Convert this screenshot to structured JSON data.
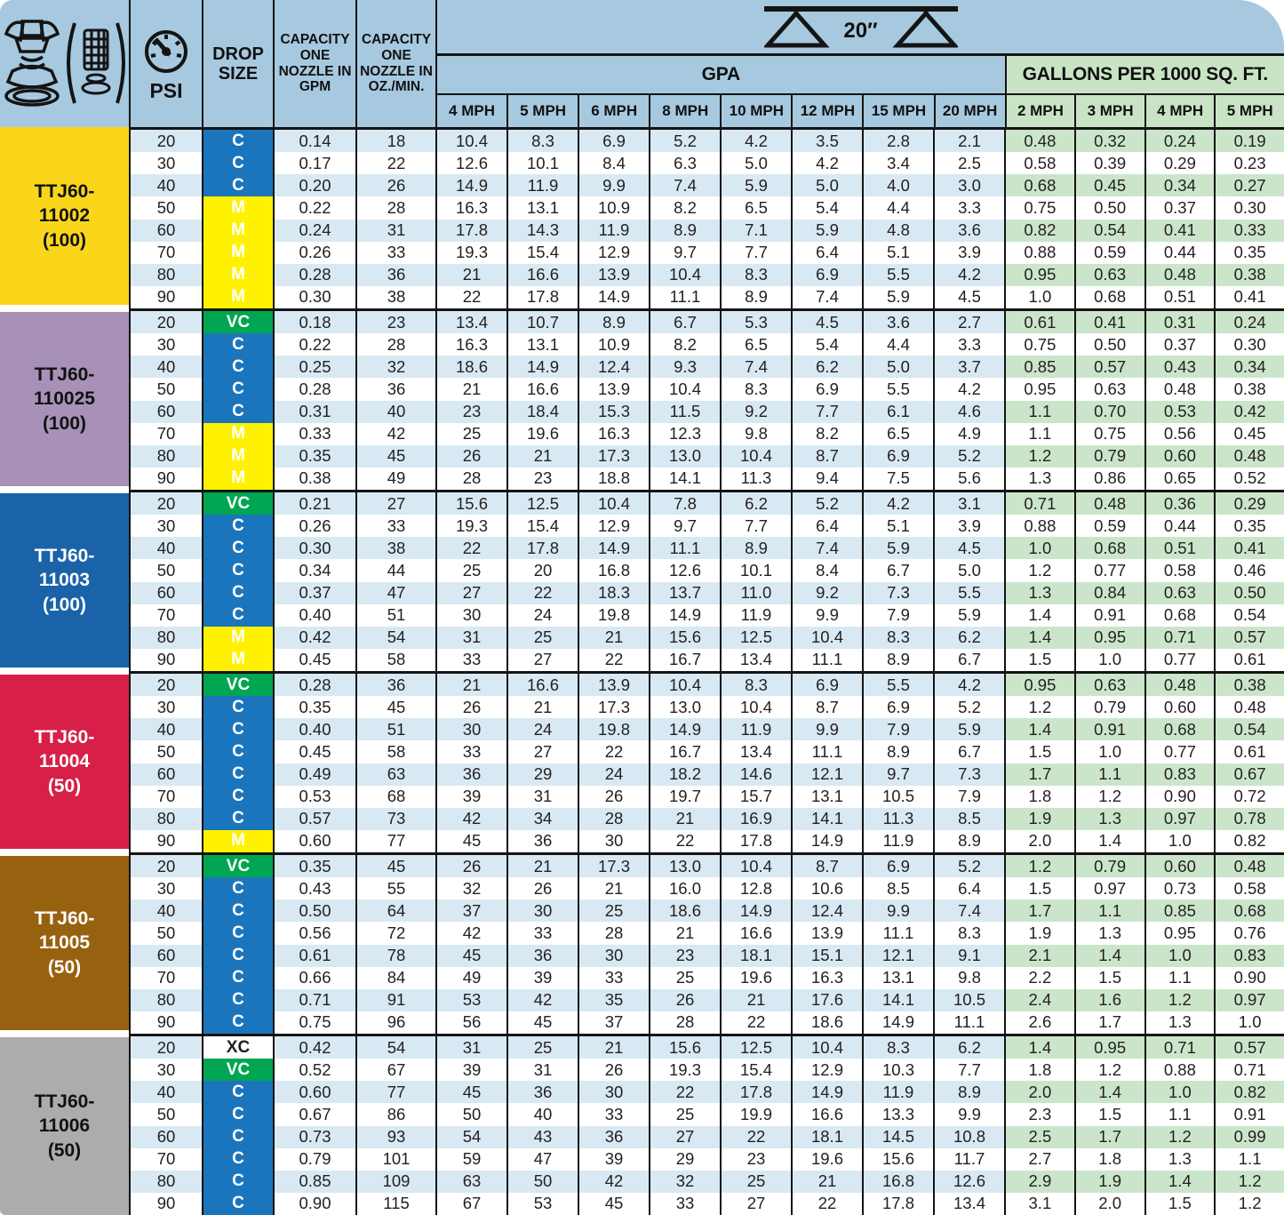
{
  "header": {
    "left_columns": {
      "psi": "PSI",
      "drop_size": "DROP SIZE",
      "capacity_gpm": "CAPACITY ONE NOZZLE IN GPM",
      "capacity_oz": "CAPACITY ONE NOZZLE IN OZ./MIN."
    },
    "spacing_label": "20″",
    "gpa": {
      "title": "GPA",
      "speeds": [
        "4 MPH",
        "5 MPH",
        "6 MPH",
        "8 MPH",
        "10 MPH",
        "12 MPH",
        "15 MPH",
        "20 MPH"
      ]
    },
    "gallons": {
      "title": "GALLONS PER 1000 SQ. FT.",
      "speeds": [
        "2 MPH",
        "3 MPH",
        "4 MPH",
        "5 MPH"
      ]
    }
  },
  "colors": {
    "header_blue": "#A6C9DF",
    "header_green": "#C9E4C5",
    "stripe_blue": "#D8E9F3",
    "stripe_green": "#CBE5CA",
    "border": "#141414",
    "text": "#231F20"
  },
  "drop_styles": {
    "C": {
      "bg": "#1B75BC",
      "fg": "#FFFFFF"
    },
    "M": {
      "bg": "#FFF200",
      "fg": "#FFFFFF"
    },
    "VC": {
      "bg": "#00A651",
      "fg": "#FFFFFF"
    },
    "XC": {
      "bg": "#FFFFFF",
      "fg": "#231F20"
    }
  },
  "chart_data": {
    "type": "table",
    "title": "Nozzle capacity and application rate chart, 20 in nozzle spacing",
    "column_structure": [
      "PSI",
      "DROP SIZE",
      "CAPACITY ONE NOZZLE IN GPM",
      "CAPACITY ONE NOZZLE IN OZ./MIN.",
      "GPA 4 MPH",
      "GPA 5 MPH",
      "GPA 6 MPH",
      "GPA 8 MPH",
      "GPA 10 MPH",
      "GPA 12 MPH",
      "GPA 15 MPH",
      "GPA 20 MPH",
      "GAL/1000SQFT 2 MPH",
      "GAL/1000SQFT 3 MPH",
      "GAL/1000SQFT 4 MPH",
      "GAL/1000SQFT 5 MPH"
    ],
    "blocks": [
      {
        "label": "TTJ60-\n11002\n(100)",
        "label_bg": "#F9D61A",
        "label_fg": "#111111",
        "rows": [
          [
            "20",
            "C",
            "0.14",
            "18",
            "10.4",
            "8.3",
            "6.9",
            "5.2",
            "4.2",
            "3.5",
            "2.8",
            "2.1",
            "0.48",
            "0.32",
            "0.24",
            "0.19"
          ],
          [
            "30",
            "C",
            "0.17",
            "22",
            "12.6",
            "10.1",
            "8.4",
            "6.3",
            "5.0",
            "4.2",
            "3.4",
            "2.5",
            "0.58",
            "0.39",
            "0.29",
            "0.23"
          ],
          [
            "40",
            "C",
            "0.20",
            "26",
            "14.9",
            "11.9",
            "9.9",
            "7.4",
            "5.9",
            "5.0",
            "4.0",
            "3.0",
            "0.68",
            "0.45",
            "0.34",
            "0.27"
          ],
          [
            "50",
            "M",
            "0.22",
            "28",
            "16.3",
            "13.1",
            "10.9",
            "8.2",
            "6.5",
            "5.4",
            "4.4",
            "3.3",
            "0.75",
            "0.50",
            "0.37",
            "0.30"
          ],
          [
            "60",
            "M",
            "0.24",
            "31",
            "17.8",
            "14.3",
            "11.9",
            "8.9",
            "7.1",
            "5.9",
            "4.8",
            "3.6",
            "0.82",
            "0.54",
            "0.41",
            "0.33"
          ],
          [
            "70",
            "M",
            "0.26",
            "33",
            "19.3",
            "15.4",
            "12.9",
            "9.7",
            "7.7",
            "6.4",
            "5.1",
            "3.9",
            "0.88",
            "0.59",
            "0.44",
            "0.35"
          ],
          [
            "80",
            "M",
            "0.28",
            "36",
            "21",
            "16.6",
            "13.9",
            "10.4",
            "8.3",
            "6.9",
            "5.5",
            "4.2",
            "0.95",
            "0.63",
            "0.48",
            "0.38"
          ],
          [
            "90",
            "M",
            "0.30",
            "38",
            "22",
            "17.8",
            "14.9",
            "11.1",
            "8.9",
            "7.4",
            "5.9",
            "4.5",
            "1.0",
            "0.68",
            "0.51",
            "0.41"
          ]
        ]
      },
      {
        "label": "TTJ60-\n110025\n(100)",
        "label_bg": "#A791B8",
        "label_fg": "#111111",
        "rows": [
          [
            "20",
            "VC",
            "0.18",
            "23",
            "13.4",
            "10.7",
            "8.9",
            "6.7",
            "5.3",
            "4.5",
            "3.6",
            "2.7",
            "0.61",
            "0.41",
            "0.31",
            "0.24"
          ],
          [
            "30",
            "C",
            "0.22",
            "28",
            "16.3",
            "13.1",
            "10.9",
            "8.2",
            "6.5",
            "5.4",
            "4.4",
            "3.3",
            "0.75",
            "0.50",
            "0.37",
            "0.30"
          ],
          [
            "40",
            "C",
            "0.25",
            "32",
            "18.6",
            "14.9",
            "12.4",
            "9.3",
            "7.4",
            "6.2",
            "5.0",
            "3.7",
            "0.85",
            "0.57",
            "0.43",
            "0.34"
          ],
          [
            "50",
            "C",
            "0.28",
            "36",
            "21",
            "16.6",
            "13.9",
            "10.4",
            "8.3",
            "6.9",
            "5.5",
            "4.2",
            "0.95",
            "0.63",
            "0.48",
            "0.38"
          ],
          [
            "60",
            "C",
            "0.31",
            "40",
            "23",
            "18.4",
            "15.3",
            "11.5",
            "9.2",
            "7.7",
            "6.1",
            "4.6",
            "1.1",
            "0.70",
            "0.53",
            "0.42"
          ],
          [
            "70",
            "M",
            "0.33",
            "42",
            "25",
            "19.6",
            "16.3",
            "12.3",
            "9.8",
            "8.2",
            "6.5",
            "4.9",
            "1.1",
            "0.75",
            "0.56",
            "0.45"
          ],
          [
            "80",
            "M",
            "0.35",
            "45",
            "26",
            "21",
            "17.3",
            "13.0",
            "10.4",
            "8.7",
            "6.9",
            "5.2",
            "1.2",
            "0.79",
            "0.60",
            "0.48"
          ],
          [
            "90",
            "M",
            "0.38",
            "49",
            "28",
            "23",
            "18.8",
            "14.1",
            "11.3",
            "9.4",
            "7.5",
            "5.6",
            "1.3",
            "0.86",
            "0.65",
            "0.52"
          ]
        ]
      },
      {
        "label": "TTJ60-\n11003\n(100)",
        "label_bg": "#1A63A8",
        "label_fg": "#FFFFFF",
        "rows": [
          [
            "20",
            "VC",
            "0.21",
            "27",
            "15.6",
            "12.5",
            "10.4",
            "7.8",
            "6.2",
            "5.2",
            "4.2",
            "3.1",
            "0.71",
            "0.48",
            "0.36",
            "0.29"
          ],
          [
            "30",
            "C",
            "0.26",
            "33",
            "19.3",
            "15.4",
            "12.9",
            "9.7",
            "7.7",
            "6.4",
            "5.1",
            "3.9",
            "0.88",
            "0.59",
            "0.44",
            "0.35"
          ],
          [
            "40",
            "C",
            "0.30",
            "38",
            "22",
            "17.8",
            "14.9",
            "11.1",
            "8.9",
            "7.4",
            "5.9",
            "4.5",
            "1.0",
            "0.68",
            "0.51",
            "0.41"
          ],
          [
            "50",
            "C",
            "0.34",
            "44",
            "25",
            "20",
            "16.8",
            "12.6",
            "10.1",
            "8.4",
            "6.7",
            "5.0",
            "1.2",
            "0.77",
            "0.58",
            "0.46"
          ],
          [
            "60",
            "C",
            "0.37",
            "47",
            "27",
            "22",
            "18.3",
            "13.7",
            "11.0",
            "9.2",
            "7.3",
            "5.5",
            "1.3",
            "0.84",
            "0.63",
            "0.50"
          ],
          [
            "70",
            "C",
            "0.40",
            "51",
            "30",
            "24",
            "19.8",
            "14.9",
            "11.9",
            "9.9",
            "7.9",
            "5.9",
            "1.4",
            "0.91",
            "0.68",
            "0.54"
          ],
          [
            "80",
            "M",
            "0.42",
            "54",
            "31",
            "25",
            "21",
            "15.6",
            "12.5",
            "10.4",
            "8.3",
            "6.2",
            "1.4",
            "0.95",
            "0.71",
            "0.57"
          ],
          [
            "90",
            "M",
            "0.45",
            "58",
            "33",
            "27",
            "22",
            "16.7",
            "13.4",
            "11.1",
            "8.9",
            "6.7",
            "1.5",
            "1.0",
            "0.77",
            "0.61"
          ]
        ]
      },
      {
        "label": "TTJ60-\n11004\n(50)",
        "label_bg": "#D81F47",
        "label_fg": "#FFFFFF",
        "rows": [
          [
            "20",
            "VC",
            "0.28",
            "36",
            "21",
            "16.6",
            "13.9",
            "10.4",
            "8.3",
            "6.9",
            "5.5",
            "4.2",
            "0.95",
            "0.63",
            "0.48",
            "0.38"
          ],
          [
            "30",
            "C",
            "0.35",
            "45",
            "26",
            "21",
            "17.3",
            "13.0",
            "10.4",
            "8.7",
            "6.9",
            "5.2",
            "1.2",
            "0.79",
            "0.60",
            "0.48"
          ],
          [
            "40",
            "C",
            "0.40",
            "51",
            "30",
            "24",
            "19.8",
            "14.9",
            "11.9",
            "9.9",
            "7.9",
            "5.9",
            "1.4",
            "0.91",
            "0.68",
            "0.54"
          ],
          [
            "50",
            "C",
            "0.45",
            "58",
            "33",
            "27",
            "22",
            "16.7",
            "13.4",
            "11.1",
            "8.9",
            "6.7",
            "1.5",
            "1.0",
            "0.77",
            "0.61"
          ],
          [
            "60",
            "C",
            "0.49",
            "63",
            "36",
            "29",
            "24",
            "18.2",
            "14.6",
            "12.1",
            "9.7",
            "7.3",
            "1.7",
            "1.1",
            "0.83",
            "0.67"
          ],
          [
            "70",
            "C",
            "0.53",
            "68",
            "39",
            "31",
            "26",
            "19.7",
            "15.7",
            "13.1",
            "10.5",
            "7.9",
            "1.8",
            "1.2",
            "0.90",
            "0.72"
          ],
          [
            "80",
            "C",
            "0.57",
            "73",
            "42",
            "34",
            "28",
            "21",
            "16.9",
            "14.1",
            "11.3",
            "8.5",
            "1.9",
            "1.3",
            "0.97",
            "0.78"
          ],
          [
            "90",
            "M",
            "0.60",
            "77",
            "45",
            "36",
            "30",
            "22",
            "17.8",
            "14.9",
            "11.9",
            "8.9",
            "2.0",
            "1.4",
            "1.0",
            "0.82"
          ]
        ]
      },
      {
        "label": "TTJ60-\n11005\n(50)",
        "label_bg": "#97620F",
        "label_fg": "#FFFFFF",
        "rows": [
          [
            "20",
            "VC",
            "0.35",
            "45",
            "26",
            "21",
            "17.3",
            "13.0",
            "10.4",
            "8.7",
            "6.9",
            "5.2",
            "1.2",
            "0.79",
            "0.60",
            "0.48"
          ],
          [
            "30",
            "C",
            "0.43",
            "55",
            "32",
            "26",
            "21",
            "16.0",
            "12.8",
            "10.6",
            "8.5",
            "6.4",
            "1.5",
            "0.97",
            "0.73",
            "0.58"
          ],
          [
            "40",
            "C",
            "0.50",
            "64",
            "37",
            "30",
            "25",
            "18.6",
            "14.9",
            "12.4",
            "9.9",
            "7.4",
            "1.7",
            "1.1",
            "0.85",
            "0.68"
          ],
          [
            "50",
            "C",
            "0.56",
            "72",
            "42",
            "33",
            "28",
            "21",
            "16.6",
            "13.9",
            "11.1",
            "8.3",
            "1.9",
            "1.3",
            "0.95",
            "0.76"
          ],
          [
            "60",
            "C",
            "0.61",
            "78",
            "45",
            "36",
            "30",
            "23",
            "18.1",
            "15.1",
            "12.1",
            "9.1",
            "2.1",
            "1.4",
            "1.0",
            "0.83"
          ],
          [
            "70",
            "C",
            "0.66",
            "84",
            "49",
            "39",
            "33",
            "25",
            "19.6",
            "16.3",
            "13.1",
            "9.8",
            "2.2",
            "1.5",
            "1.1",
            "0.90"
          ],
          [
            "80",
            "C",
            "0.71",
            "91",
            "53",
            "42",
            "35",
            "26",
            "21",
            "17.6",
            "14.1",
            "10.5",
            "2.4",
            "1.6",
            "1.2",
            "0.97"
          ],
          [
            "90",
            "C",
            "0.75",
            "96",
            "56",
            "45",
            "37",
            "28",
            "22",
            "18.6",
            "14.9",
            "11.1",
            "2.6",
            "1.7",
            "1.3",
            "1.0"
          ]
        ]
      },
      {
        "label": "TTJ60-\n11006\n(50)",
        "label_bg": "#ACABAD",
        "label_fg": "#111111",
        "rows": [
          [
            "20",
            "XC",
            "0.42",
            "54",
            "31",
            "25",
            "21",
            "15.6",
            "12.5",
            "10.4",
            "8.3",
            "6.2",
            "1.4",
            "0.95",
            "0.71",
            "0.57"
          ],
          [
            "30",
            "VC",
            "0.52",
            "67",
            "39",
            "31",
            "26",
            "19.3",
            "15.4",
            "12.9",
            "10.3",
            "7.7",
            "1.8",
            "1.2",
            "0.88",
            "0.71"
          ],
          [
            "40",
            "C",
            "0.60",
            "77",
            "45",
            "36",
            "30",
            "22",
            "17.8",
            "14.9",
            "11.9",
            "8.9",
            "2.0",
            "1.4",
            "1.0",
            "0.82"
          ],
          [
            "50",
            "C",
            "0.67",
            "86",
            "50",
            "40",
            "33",
            "25",
            "19.9",
            "16.6",
            "13.3",
            "9.9",
            "2.3",
            "1.5",
            "1.1",
            "0.91"
          ],
          [
            "60",
            "C",
            "0.73",
            "93",
            "54",
            "43",
            "36",
            "27",
            "22",
            "18.1",
            "14.5",
            "10.8",
            "2.5",
            "1.7",
            "1.2",
            "0.99"
          ],
          [
            "70",
            "C",
            "0.79",
            "101",
            "59",
            "47",
            "39",
            "29",
            "23",
            "19.6",
            "15.6",
            "11.7",
            "2.7",
            "1.8",
            "1.3",
            "1.1"
          ],
          [
            "80",
            "C",
            "0.85",
            "109",
            "63",
            "50",
            "42",
            "32",
            "25",
            "21",
            "16.8",
            "12.6",
            "2.9",
            "1.9",
            "1.4",
            "1.2"
          ],
          [
            "90",
            "C",
            "0.90",
            "115",
            "67",
            "53",
            "45",
            "33",
            "27",
            "22",
            "17.8",
            "13.4",
            "3.1",
            "2.0",
            "1.5",
            "1.2"
          ]
        ]
      }
    ]
  }
}
